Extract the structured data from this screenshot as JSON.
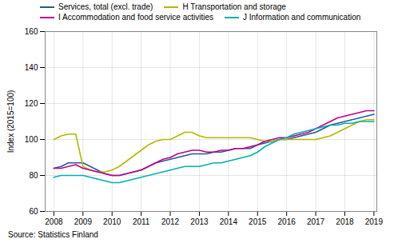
{
  "chart_data": {
    "type": "line",
    "ylabel": "Index (2015=100)",
    "source": "Source: Statistics Finland",
    "xlim": [
      2007.7,
      2019.1
    ],
    "xticks": [
      2008,
      2009,
      2010,
      2011,
      2012,
      2013,
      2014,
      2015,
      2016,
      2017,
      2018,
      2019
    ],
    "ylim": [
      60,
      160
    ],
    "yticks": [
      60,
      80,
      100,
      120,
      140,
      160
    ],
    "grid": true,
    "legend": "upper left",
    "x": [
      2008.0,
      2008.25,
      2008.5,
      2008.75,
      2009.0,
      2009.25,
      2009.5,
      2009.75,
      2010.0,
      2010.25,
      2010.5,
      2010.75,
      2011.0,
      2011.25,
      2011.5,
      2011.75,
      2012.0,
      2012.25,
      2012.5,
      2012.75,
      2013.0,
      2013.25,
      2013.5,
      2013.75,
      2014.0,
      2014.25,
      2014.5,
      2014.75,
      2015.0,
      2015.25,
      2015.5,
      2015.75,
      2016.0,
      2016.25,
      2016.5,
      2016.75,
      2017.0,
      2017.25,
      2017.5,
      2017.75,
      2018.0,
      2018.25,
      2018.5,
      2018.75,
      2019.0
    ],
    "series": [
      {
        "name": "Services, total (excl. trade)",
        "color": "#1f5c99",
        "values": [
          84,
          85,
          87,
          87,
          87,
          85,
          83,
          81,
          80,
          80,
          81,
          82,
          83,
          85,
          87,
          88,
          89,
          90,
          91,
          92,
          92,
          92,
          93,
          93,
          94,
          95,
          95,
          95,
          97,
          98,
          99,
          100,
          100,
          101,
          102,
          103,
          104,
          106,
          108,
          109,
          110,
          111,
          112,
          113,
          114
        ]
      },
      {
        "name": "H Transportation and storage",
        "color": "#b5b800",
        "values": [
          100,
          102,
          103,
          103,
          85,
          83,
          82,
          82,
          83,
          85,
          88,
          91,
          94,
          97,
          99,
          100,
          100,
          102,
          104,
          104,
          102,
          101,
          101,
          101,
          101,
          101,
          101,
          101,
          100,
          99,
          99,
          100,
          100,
          100,
          100,
          100,
          100,
          101,
          102,
          104,
          106,
          108,
          110,
          111,
          111
        ]
      },
      {
        "name": "I Accommodation and food service activities",
        "color": "#c0008a",
        "values": [
          84,
          84,
          85,
          86,
          84,
          83,
          82,
          81,
          80,
          80,
          81,
          82,
          83,
          85,
          87,
          89,
          90,
          92,
          93,
          94,
          94,
          93,
          93,
          94,
          94,
          95,
          95,
          96,
          97,
          99,
          100,
          101,
          101,
          102,
          103,
          104,
          106,
          108,
          110,
          112,
          113,
          114,
          115,
          116,
          116
        ]
      },
      {
        "name": "J Information and communication",
        "color": "#00b0b0",
        "values": [
          79,
          80,
          80,
          80,
          80,
          79,
          78,
          77,
          76,
          76,
          77,
          78,
          79,
          80,
          81,
          82,
          83,
          84,
          85,
          85,
          85,
          86,
          87,
          87,
          88,
          89,
          90,
          91,
          93,
          96,
          98,
          100,
          101,
          103,
          104,
          105,
          106,
          107,
          108,
          108,
          109,
          109,
          110,
          110,
          110
        ]
      }
    ]
  }
}
